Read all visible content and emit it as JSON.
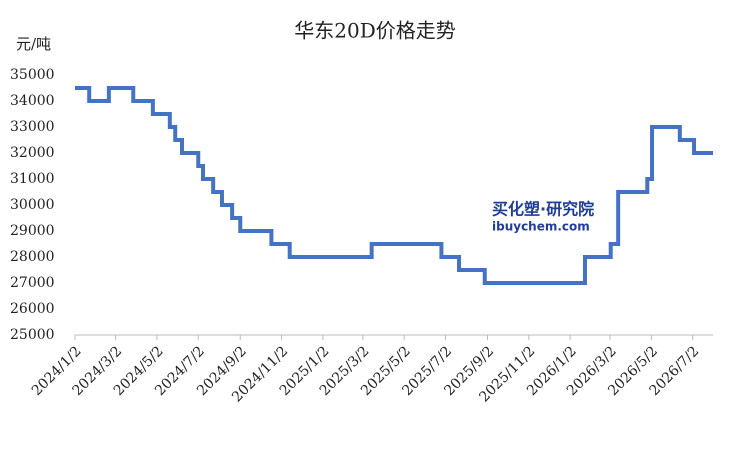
{
  "chart_data": {
    "type": "step-line",
    "title": "华东20D价格走势",
    "y_unit": "元/吨",
    "watermark": {
      "brand": "买化塑·研究院",
      "site": "ibuychem.com"
    },
    "x": [
      "2024/1/2",
      "2024/1/23",
      "2024/2/21",
      "2024/3/28",
      "2024/4/26",
      "2024/5/21",
      "2024/5/29",
      "2024/6/8",
      "2024/7/2",
      "2024/7/9",
      "2024/7/24",
      "2024/8/6",
      "2024/8/21",
      "2024/9/2",
      "2024/10/18",
      "2024/11/14",
      "2025/3/15",
      "2025/6/26",
      "2025/7/22",
      "2025/8/29",
      "2026/1/24",
      "2026/3/3",
      "2026/3/14",
      "2026/4/26",
      "2026/5/3",
      "2026/6/13",
      "2026/7/4",
      "2026/8/1"
    ],
    "series": [
      {
        "name": "华东20D",
        "color": "#4472c4",
        "values": [
          34500,
          34000,
          34500,
          34000,
          33500,
          33000,
          32500,
          32000,
          31500,
          31000,
          30500,
          30000,
          29500,
          29000,
          28500,
          28000,
          28500,
          28000,
          27500,
          27000,
          28000,
          28500,
          30500,
          31000,
          33000,
          32500,
          32000,
          32000
        ]
      }
    ],
    "xlim": [
      "2024/1/2",
      "2026/8/1"
    ],
    "xticks": [
      "2024/1/2",
      "2024/3/2",
      "2024/5/2",
      "2024/7/2",
      "2024/9/2",
      "2024/11/2",
      "2025/1/2",
      "2025/3/2",
      "2025/5/2",
      "2025/7/2",
      "2025/9/2",
      "2025/11/2",
      "2026/1/2",
      "2026/3/2",
      "2026/5/2",
      "2026/7/2"
    ],
    "ylim": [
      25000,
      35000
    ],
    "yticks": [
      25000,
      26000,
      27000,
      28000,
      29000,
      30000,
      31000,
      32000,
      33000,
      34000,
      35000
    ],
    "grid": false
  }
}
